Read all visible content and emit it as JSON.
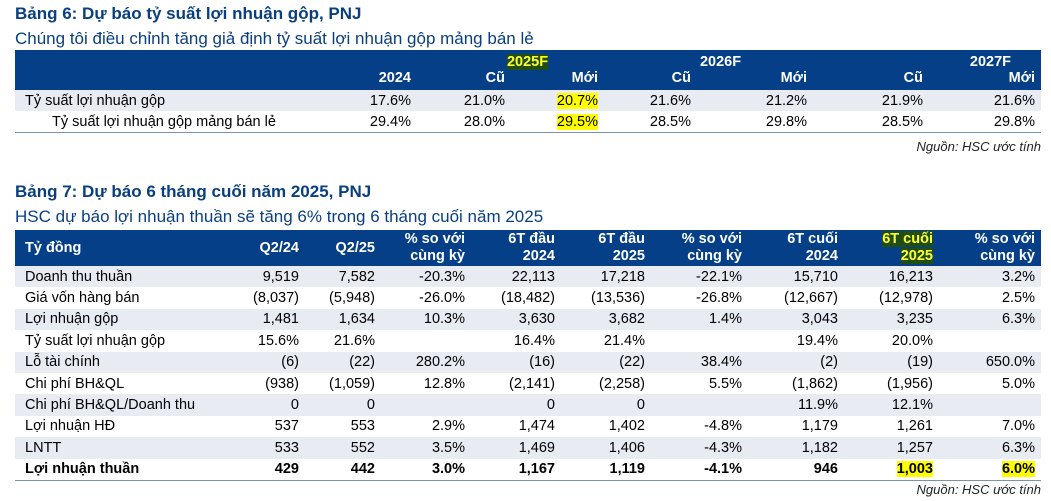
{
  "table6": {
    "title": "Bảng 6: Dự báo tỷ suất lợi nhuận gộp, PNJ",
    "subtitle": "Chúng tôi điều chỉnh tăng giả định tỷ suất lợi nhuận gộp mảng bán lẻ",
    "group_headers": [
      "",
      "",
      "2025F",
      "2026F",
      "2027F"
    ],
    "columns": [
      "",
      "2024",
      "Cũ",
      "Mới",
      "Cũ",
      "Mới",
      "Cũ",
      "Mới"
    ],
    "rows": [
      {
        "label": "Tỷ suất lợi nhuận gộp",
        "values": [
          "17.6%",
          "21.0%",
          "20.7%",
          "21.6%",
          "21.2%",
          "21.9%",
          "21.6%"
        ]
      },
      {
        "label": "Tỷ suất lợi nhuận gộp mảng bán lẻ",
        "values": [
          "29.4%",
          "28.0%",
          "29.5%",
          "28.5%",
          "29.8%",
          "28.5%",
          "29.8%"
        ]
      }
    ],
    "source": "Nguồn: HSC ước tính",
    "highlight_color": "#ffff00"
  },
  "table7": {
    "title": "Bảng 7: Dự báo 6 tháng cuối năm 2025, PNJ",
    "subtitle": "HSC dự báo lợi nhuận thuần sẽ tăng 6% trong 6 tháng cuối năm 2025",
    "columns": [
      {
        "l1": "Tỷ đồng",
        "l2": ""
      },
      {
        "l1": "Q2/24",
        "l2": ""
      },
      {
        "l1": "Q2/25",
        "l2": ""
      },
      {
        "l1": "% so với",
        "l2": "cùng kỳ"
      },
      {
        "l1": "6T đầu",
        "l2": "2024"
      },
      {
        "l1": "6T đầu",
        "l2": "2025"
      },
      {
        "l1": "% so với",
        "l2": "cùng kỳ"
      },
      {
        "l1": "6T cuối",
        "l2": "2024"
      },
      {
        "l1": "6T cuối",
        "l2": "2025"
      },
      {
        "l1": "% so với",
        "l2": "cùng kỳ"
      }
    ],
    "rows": [
      {
        "label": "Doanh thu thuần",
        "values": [
          "9,519",
          "7,582",
          "-20.3%",
          "22,113",
          "17,218",
          "-22.1%",
          "15,710",
          "16,213",
          "3.2%"
        ]
      },
      {
        "label": "Giá vốn hàng bán",
        "values": [
          "(8,037)",
          "(5,948)",
          "-26.0%",
          "(18,482)",
          "(13,536)",
          "-26.8%",
          "(12,667)",
          "(12,978)",
          "2.5%"
        ]
      },
      {
        "label": "Lợi nhuận gộp",
        "values": [
          "1,481",
          "1,634",
          "10.3%",
          "3,630",
          "3,682",
          "1.4%",
          "3,043",
          "3,235",
          "6.3%"
        ]
      },
      {
        "label": "Tỷ suất lợi nhuận gộp",
        "values": [
          "15.6%",
          "21.6%",
          "",
          "16.4%",
          "21.4%",
          "",
          "19.4%",
          "20.0%",
          ""
        ]
      },
      {
        "label": "Lỗ tài chính",
        "values": [
          "(6)",
          "(22)",
          "280.2%",
          "(16)",
          "(22)",
          "38.4%",
          "(2)",
          "(19)",
          "650.0%"
        ]
      },
      {
        "label": "Chi phí BH&QL",
        "values": [
          "(938)",
          "(1,059)",
          "12.8%",
          "(2,141)",
          "(2,258)",
          "5.5%",
          "(1,862)",
          "(1,956)",
          "5.0%"
        ]
      },
      {
        "label": "Chi phí BH&QL/Doanh thu",
        "values": [
          "0",
          "0",
          "",
          "0",
          "0",
          "",
          "11.9%",
          "12.1%",
          ""
        ]
      },
      {
        "label": "Lợi nhuận HĐ",
        "values": [
          "537",
          "553",
          "2.9%",
          "1,474",
          "1,402",
          "-4.8%",
          "1,179",
          "1,261",
          "7.0%"
        ]
      },
      {
        "label": "LNTT",
        "values": [
          "533",
          "552",
          "3.5%",
          "1,469",
          "1,406",
          "-4.3%",
          "1,182",
          "1,257",
          "6.3%"
        ]
      },
      {
        "label": "Lợi nhuận thuần",
        "values": [
          "429",
          "442",
          "3.0%",
          "1,167",
          "1,119",
          "-4.1%",
          "946",
          "1,003",
          "6.0%"
        ]
      }
    ],
    "source": "Nguồn: HSC ước tính"
  }
}
